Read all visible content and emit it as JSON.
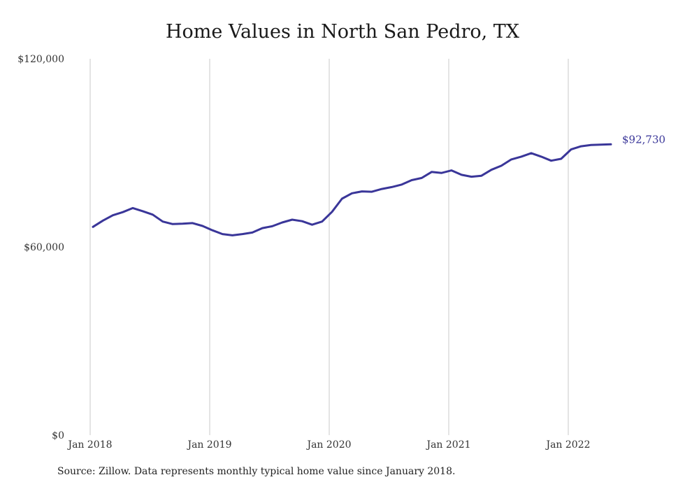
{
  "title": "Home Values in North San Pedro, TX",
  "source": "Source: Zillow. Data represents monthly typical home value since January 2018.",
  "colors": {
    "line": "#3a3699",
    "grid": "#c8c8c8",
    "text": "#333333"
  },
  "chart_data": {
    "type": "line",
    "title": "Home Values in North San Pedro, TX",
    "xlabel": "",
    "ylabel": "",
    "ylim": [
      0,
      120000
    ],
    "yticks": [
      {
        "value": 0,
        "label": "$0"
      },
      {
        "value": 60000,
        "label": "$60,000"
      },
      {
        "value": 120000,
        "label": "$120,000"
      }
    ],
    "xticks": [
      {
        "index": 0,
        "label": "Jan 2018"
      },
      {
        "index": 12,
        "label": "Jan 2019"
      },
      {
        "index": 24,
        "label": "Jan 2020"
      },
      {
        "index": 36,
        "label": "Jan 2021"
      },
      {
        "index": 48,
        "label": "Jan 2022"
      }
    ],
    "grid": "vertical",
    "end_label": "$92,730",
    "series": [
      {
        "values": [
          66400,
          68400,
          70100,
          71100,
          72400,
          71400,
          70300,
          68100,
          67300,
          67400,
          67600,
          66700,
          65300,
          64100,
          63700,
          64100,
          64600,
          66000,
          66600,
          67800,
          68700,
          68200,
          67100,
          68100,
          71200,
          75400,
          77100,
          77700,
          77600,
          78500,
          79100,
          79900,
          81300,
          82000,
          83900,
          83600,
          84400,
          83000,
          82400,
          82700,
          84600,
          85900,
          87900,
          88800,
          89900,
          88800,
          87500,
          88100,
          91100,
          92100,
          92500,
          92600,
          92730
        ]
      }
    ]
  }
}
